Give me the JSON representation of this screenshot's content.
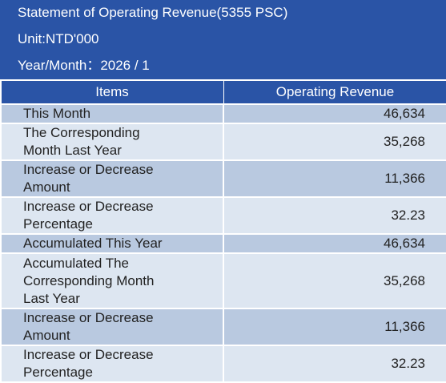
{
  "header": {
    "title": "Statement of Operating Revenue(5355 PSC)",
    "unit": "Unit:NTD'000",
    "period": "Year/Month：2026 / 1"
  },
  "columns": {
    "items": "Items",
    "revenue": "Operating Revenue"
  },
  "rows": [
    {
      "item": "This Month",
      "value": "46,634"
    },
    {
      "item": "The Corresponding Month Last Year",
      "value": "35,268"
    },
    {
      "item": "Increase or Decrease Amount",
      "value": "11,366"
    },
    {
      "item": "Increase or Decrease Percentage",
      "value": "32.23"
    },
    {
      "item": "Accumulated This Year",
      "value": "46,634"
    },
    {
      "item": "Accumulated The Corresponding Month Last Year",
      "value": "35,268"
    },
    {
      "item": "Increase or Decrease Amount",
      "value": "11,366"
    },
    {
      "item": "Increase or Decrease Percentage",
      "value": "32.23"
    }
  ],
  "colors": {
    "header_bg": "#2a54a6",
    "row_dark": "#b9c9e0",
    "row_light": "#dde6f1"
  }
}
